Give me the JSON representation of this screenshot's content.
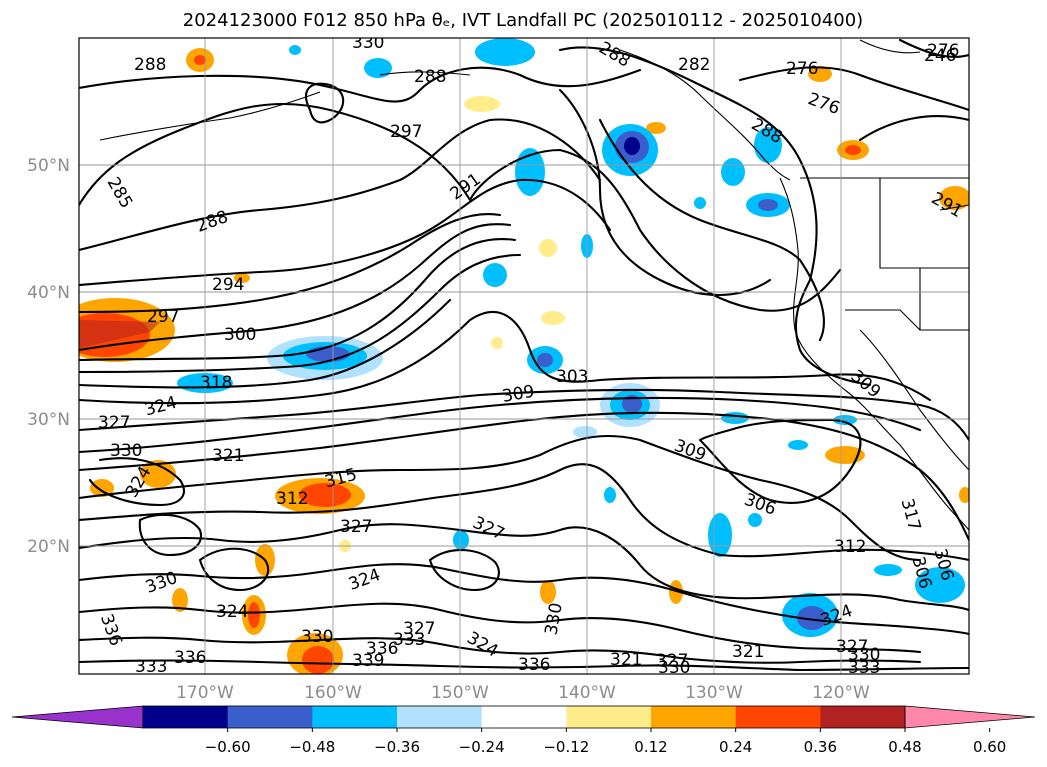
{
  "title": "2024123000 F012 850 hPa θₑ, IVT Landfall PC (2025010112 - 2025010400)",
  "map": {
    "lat_labels": [
      "50°N",
      "40°N",
      "30°N",
      "20°N"
    ],
    "lon_labels": [
      "170°W",
      "160°W",
      "150°W",
      "140°W",
      "130°W",
      "120°W"
    ],
    "contour_labels": [
      "288",
      "285",
      "288",
      "294",
      "297",
      "300",
      "318",
      "324",
      "327",
      "330",
      "324",
      "321",
      "312",
      "315",
      "327",
      "327",
      "324",
      "330",
      "324",
      "336",
      "333",
      "336",
      "339",
      "330",
      "336",
      "333",
      "327",
      "324",
      "330",
      "336",
      "321",
      "327",
      "330",
      "297",
      "291",
      "288",
      "282",
      "276",
      "276",
      "276",
      "246",
      "288",
      "309",
      "303",
      "309",
      "306",
      "309",
      "306",
      "312",
      "317",
      "306",
      "324",
      "321",
      "327",
      "330",
      "333",
      "291",
      "330",
      "288"
    ],
    "colors": {
      "land_lines": "#000000",
      "grid": "#9a9a9a"
    }
  },
  "colorbar": {
    "ticks": [
      "−0.60",
      "−0.48",
      "−0.36",
      "−0.24",
      "−0.12",
      "0.12",
      "0.24",
      "0.36",
      "0.48",
      "0.60"
    ],
    "colors": [
      "#9932cc",
      "#00008b",
      "#3a5fcd",
      "#00bfff",
      "#b0e2ff",
      "#ffffff",
      "#ffec8b",
      "#ffa500",
      "#ff4500",
      "#b22222",
      "#ff88aa"
    ]
  }
}
